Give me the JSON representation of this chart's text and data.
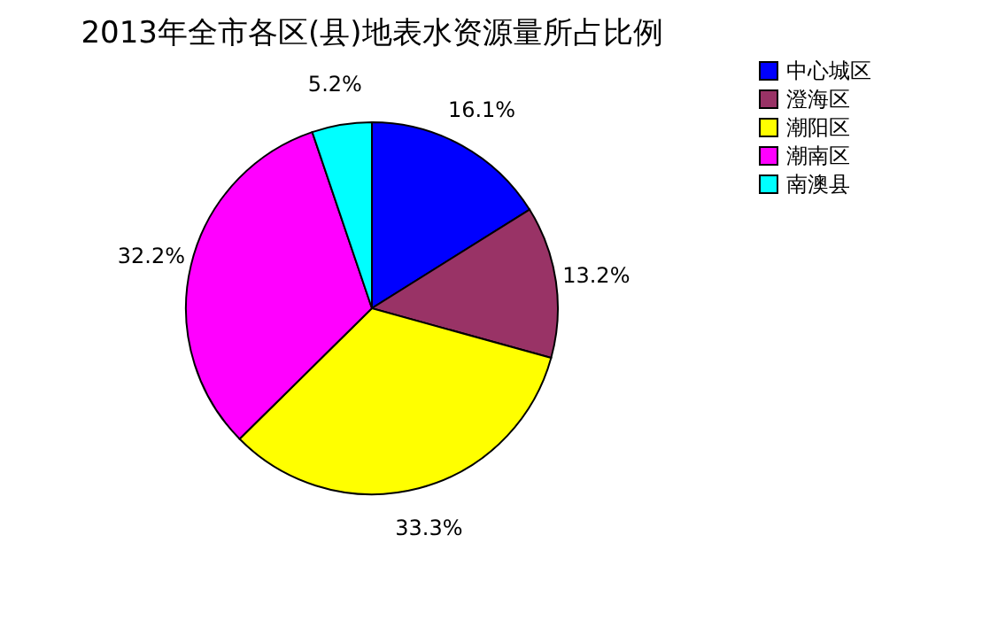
{
  "chart_data": {
    "type": "pie",
    "title": "2013年全市各区(县)地表水资源量所占比例",
    "categories": [
      "中心城区",
      "澄海区",
      "潮阳区",
      "潮南区",
      "南澳县"
    ],
    "values": [
      16.1,
      13.2,
      33.3,
      32.2,
      5.2
    ],
    "colors": [
      "#0000ff",
      "#993366",
      "#ffff00",
      "#ff00ff",
      "#00ffff"
    ],
    "value_labels": [
      "16.1%",
      "13.2%",
      "33.3%",
      "32.2%",
      "5.2%"
    ],
    "legend": "right"
  }
}
